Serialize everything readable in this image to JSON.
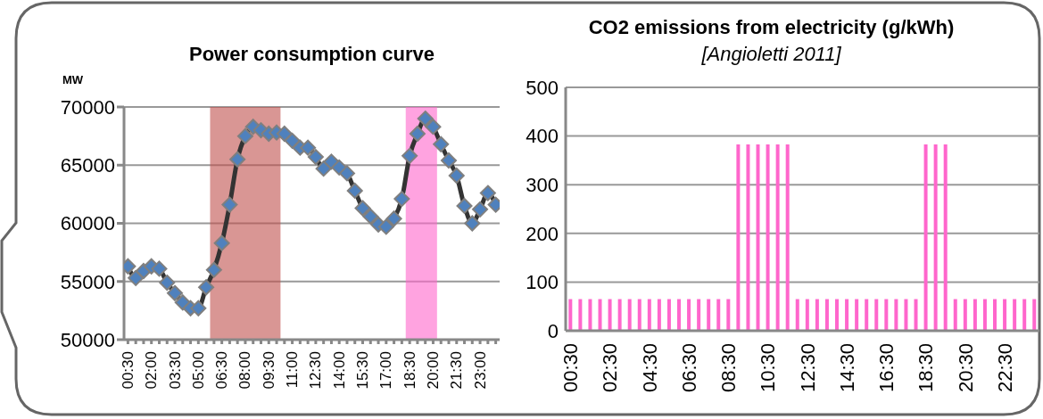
{
  "chart_data": [
    {
      "type": "line",
      "title": "Power consumption curve",
      "ylabel": "MW",
      "x": [
        0.5,
        1,
        1.5,
        2,
        2.5,
        3,
        3.5,
        4,
        4.5,
        5,
        5.5,
        6,
        6.5,
        7,
        7.5,
        8,
        8.5,
        9,
        9.5,
        10,
        10.5,
        11,
        11.5,
        12,
        12.5,
        13,
        13.5,
        14,
        14.5,
        15,
        15.5,
        16,
        16.5,
        17,
        17.5,
        18,
        18.5,
        19,
        19.5,
        20,
        20.5,
        21,
        21.5,
        22,
        22.5,
        23,
        23.5,
        24
      ],
      "series": [
        {
          "color": "#4f81bd",
          "values": [
            56300,
            55300,
            55900,
            56300,
            56100,
            54900,
            54000,
            53200,
            52700,
            52700,
            54500,
            56000,
            58300,
            61600,
            65500,
            67500,
            68300,
            68000,
            67700,
            67800,
            67700,
            67100,
            66500,
            66500,
            65700,
            64700,
            65300,
            64800,
            64300,
            62800,
            61300,
            60600,
            59900,
            59700,
            60400,
            62100,
            65800,
            67700,
            69000,
            68300,
            66800,
            65400,
            64100,
            61500,
            60000,
            61200,
            62600,
            61600
          ]
        }
      ],
      "xlim": [
        0.25,
        24.25
      ],
      "xticks": [
        {
          "value": 0.5,
          "label": "00:30"
        },
        {
          "value": 1,
          "label": null
        },
        {
          "value": 1.5,
          "label": null
        },
        {
          "value": 2,
          "label": "02:00"
        },
        {
          "value": 2.5,
          "label": null
        },
        {
          "value": 3,
          "label": null
        },
        {
          "value": 3.5,
          "label": "03:30"
        },
        {
          "value": 4,
          "label": null
        },
        {
          "value": 4.5,
          "label": null
        },
        {
          "value": 5,
          "label": "05:00"
        },
        {
          "value": 5.5,
          "label": null
        },
        {
          "value": 6,
          "label": null
        },
        {
          "value": 6.5,
          "label": "06:30"
        },
        {
          "value": 7,
          "label": null
        },
        {
          "value": 7.5,
          "label": null
        },
        {
          "value": 8,
          "label": "08:00"
        },
        {
          "value": 8.5,
          "label": null
        },
        {
          "value": 9,
          "label": null
        },
        {
          "value": 9.5,
          "label": "09:30"
        },
        {
          "value": 10,
          "label": null
        },
        {
          "value": 10.5,
          "label": null
        },
        {
          "value": 11,
          "label": "11:00"
        },
        {
          "value": 11.5,
          "label": null
        },
        {
          "value": 12,
          "label": null
        },
        {
          "value": 12.5,
          "label": "12:30"
        },
        {
          "value": 13,
          "label": null
        },
        {
          "value": 13.5,
          "label": null
        },
        {
          "value": 14,
          "label": "14:00"
        },
        {
          "value": 14.5,
          "label": null
        },
        {
          "value": 15,
          "label": null
        },
        {
          "value": 15.5,
          "label": "15:30"
        },
        {
          "value": 16,
          "label": null
        },
        {
          "value": 16.5,
          "label": null
        },
        {
          "value": 17,
          "label": "17:00"
        },
        {
          "value": 17.5,
          "label": null
        },
        {
          "value": 18,
          "label": null
        },
        {
          "value": 18.5,
          "label": "18:30"
        },
        {
          "value": 19,
          "label": null
        },
        {
          "value": 19.5,
          "label": null
        },
        {
          "value": 20,
          "label": "20:00"
        },
        {
          "value": 20.5,
          "label": null
        },
        {
          "value": 21,
          "label": null
        },
        {
          "value": 21.5,
          "label": "21:30"
        },
        {
          "value": 22,
          "label": null
        },
        {
          "value": 22.5,
          "label": null
        },
        {
          "value": 23,
          "label": "23:00"
        },
        {
          "value": 23.5,
          "label": null
        },
        {
          "value": 24,
          "label": null
        }
      ],
      "ylim": [
        50000,
        70000
      ],
      "yticks": [
        50000,
        55000,
        60000,
        65000,
        70000
      ],
      "bands": [
        {
          "axis": "x",
          "from": 5.75,
          "to": 10.25,
          "color": "#c0504d"
        },
        {
          "axis": "x",
          "from": 18.25,
          "to": 20.25,
          "color": "#ff66cc"
        }
      ],
      "grid": "y",
      "marker": "diamond",
      "line_style": "solid",
      "legend": false
    },
    {
      "type": "bar",
      "title": "CO2 emissions from electricity (g/kWh)",
      "subtitle": "[Angioletti 2011]",
      "categories": [
        "00:30",
        null,
        null,
        null,
        "02:30",
        null,
        null,
        null,
        "04:30",
        null,
        null,
        null,
        "06:30",
        null,
        null,
        null,
        "08:30",
        null,
        null,
        null,
        "10:30",
        null,
        null,
        null,
        "12:30",
        null,
        null,
        null,
        "14:30",
        null,
        null,
        null,
        "16:30",
        null,
        null,
        null,
        "18:30",
        null,
        null,
        null,
        "20:30",
        null,
        null,
        null,
        "22:30",
        null,
        null,
        null
      ],
      "series": [
        {
          "color": "#ff66cc",
          "values": [
            65,
            65,
            65,
            65,
            65,
            65,
            65,
            65,
            65,
            65,
            65,
            65,
            65,
            65,
            65,
            65,
            65,
            383,
            383,
            383,
            383,
            383,
            383,
            65,
            65,
            65,
            65,
            65,
            65,
            65,
            65,
            65,
            65,
            65,
            65,
            65,
            383,
            383,
            383,
            65,
            65,
            65,
            65,
            65,
            65,
            65,
            65,
            65
          ]
        }
      ],
      "ylim": [
        0,
        500
      ],
      "yticks": [
        0,
        100,
        200,
        300,
        400,
        500
      ],
      "grid": "y",
      "legend": false
    }
  ]
}
